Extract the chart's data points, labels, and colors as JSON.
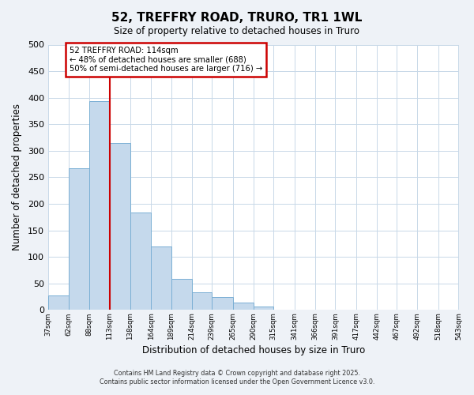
{
  "title": "52, TREFFRY ROAD, TRURO, TR1 1WL",
  "subtitle": "Size of property relative to detached houses in Truro",
  "xlabel": "Distribution of detached houses by size in Truro",
  "ylabel": "Number of detached properties",
  "bar_edges": [
    37,
    62,
    88,
    113,
    138,
    164,
    189,
    214,
    239,
    265,
    290,
    315,
    341,
    366,
    391,
    417,
    442,
    467,
    492,
    518,
    543
  ],
  "bar_heights": [
    28,
    267,
    393,
    314,
    184,
    119,
    58,
    33,
    25,
    14,
    7,
    0,
    0,
    0,
    0,
    0,
    0,
    0,
    0,
    0
  ],
  "bar_color": "#c5d9ec",
  "bar_edgecolor": "#7aafd4",
  "vline_x": 113,
  "vline_color": "#cc0000",
  "annotation_text": "52 TREFFRY ROAD: 114sqm\n← 48% of detached houses are smaller (688)\n50% of semi-detached houses are larger (716) →",
  "annotation_box_color": "#ffffff",
  "annotation_box_edgecolor": "#cc0000",
  "ylim": [
    0,
    500
  ],
  "xlim": [
    37,
    543
  ],
  "tick_labels": [
    "37sqm",
    "62sqm",
    "88sqm",
    "113sqm",
    "138sqm",
    "164sqm",
    "189sqm",
    "214sqm",
    "239sqm",
    "265sqm",
    "290sqm",
    "315sqm",
    "341sqm",
    "366sqm",
    "391sqm",
    "417sqm",
    "442sqm",
    "467sqm",
    "492sqm",
    "518sqm",
    "543sqm"
  ],
  "yticks": [
    0,
    50,
    100,
    150,
    200,
    250,
    300,
    350,
    400,
    450,
    500
  ],
  "footer_line1": "Contains HM Land Registry data © Crown copyright and database right 2025.",
  "footer_line2": "Contains public sector information licensed under the Open Government Licence v3.0.",
  "background_color": "#eef2f7",
  "plot_background_color": "#ffffff",
  "grid_color": "#c8d8e8"
}
